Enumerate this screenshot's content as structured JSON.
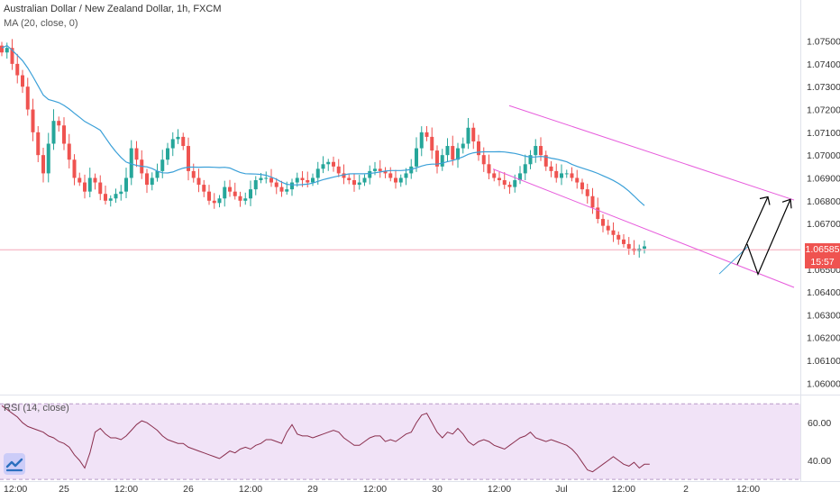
{
  "legend": {
    "symbol_title": "Australian Dollar / New Zealand Dollar, 1h, FXCM",
    "ma_label": "MA (20, close, 0)",
    "rsi_label": "RSI (14, close)"
  },
  "current_price": {
    "price": "1.06585",
    "countdown": "15:57",
    "value": 1.06585
  },
  "colors": {
    "up": "#26a69a",
    "down": "#ef5350",
    "ma": "#3ba0d8",
    "channel": "#e75bdc",
    "rsi_band": "#f1e3f7",
    "rsi_line": "#8a2f4e",
    "price_line": "#f3a6b8",
    "arrow": "#000000"
  },
  "chart_data": [
    {
      "type": "candlestick",
      "title": "Australian Dollar / New Zealand Dollar, 1h, FXCM",
      "y_axis_ticks": [
        "1.07500",
        "1.07400",
        "1.07300",
        "1.07200",
        "1.07100",
        "1.07000",
        "1.06900",
        "1.06800",
        "1.06700",
        "1.06600",
        "1.06500",
        "1.06400",
        "1.06300",
        "1.06200",
        "1.06100",
        "1.06000"
      ],
      "ylim": [
        1.0595,
        1.0768
      ],
      "x_axis_ticks": [
        "12:00",
        "25",
        "12:00",
        "26",
        "12:00",
        "29",
        "12:00",
        "30",
        "12:00",
        "Jul",
        "12:00",
        "2",
        "12:00"
      ],
      "x_tick_index": [
        0,
        12,
        24,
        36,
        48,
        60,
        72,
        84,
        96,
        108,
        120,
        132,
        144
      ],
      "grid": false,
      "series_close": [
        1.0745,
        1.0747,
        1.074,
        1.0735,
        1.073,
        1.072,
        1.071,
        1.07,
        1.0692,
        1.0705,
        1.0715,
        1.0713,
        1.0705,
        1.0698,
        1.069,
        1.0688,
        1.0684,
        1.069,
        1.0688,
        1.0683,
        1.068,
        1.0681,
        1.0683,
        1.0684,
        1.069,
        1.0703,
        1.0698,
        1.0692,
        1.0687,
        1.069,
        1.0693,
        1.0698,
        1.0703,
        1.0707,
        1.0708,
        1.0704,
        1.0693,
        1.069,
        1.0687,
        1.0684,
        1.068,
        1.0679,
        1.0681,
        1.0686,
        1.0684,
        1.0682,
        1.068,
        1.0681,
        1.0685,
        1.0689,
        1.069,
        1.069,
        1.0688,
        1.0686,
        1.0684,
        1.0685,
        1.0688,
        1.069,
        1.0689,
        1.0688,
        1.069,
        1.0694,
        1.0696,
        1.0697,
        1.0695,
        1.0692,
        1.069,
        1.0689,
        1.0687,
        1.0688,
        1.069,
        1.0693,
        1.0694,
        1.0693,
        1.0692,
        1.069,
        1.0688,
        1.069,
        1.0692,
        1.0695,
        1.0703,
        1.071,
        1.0708,
        1.0702,
        1.0695,
        1.07,
        1.0704,
        1.0698,
        1.0703,
        1.0705,
        1.0712,
        1.0706,
        1.07,
        1.0696,
        1.0692,
        1.069,
        1.0689,
        1.0687,
        1.0686,
        1.0689,
        1.0692,
        1.0696,
        1.07,
        1.0704,
        1.07,
        1.0695,
        1.0693,
        1.069,
        1.0692,
        1.0692,
        1.069,
        1.0688,
        1.0685,
        1.0682,
        1.0677,
        1.0672,
        1.0669,
        1.0667,
        1.0665,
        1.0663,
        1.0661,
        1.0659,
        1.0658,
        1.0659,
        1.066
      ],
      "ma_period": 20
    },
    {
      "type": "line",
      "title": "RSI (14, close)",
      "y_axis_ticks": [
        "60.00",
        "40.00"
      ],
      "ylim": [
        31,
        72
      ],
      "band": [
        30,
        70
      ],
      "values": [
        69,
        67,
        65,
        63,
        60,
        58,
        57,
        56,
        55,
        53,
        52,
        50,
        49,
        47,
        43,
        40,
        36,
        44,
        55,
        57,
        54,
        52,
        52,
        51,
        53,
        56,
        59,
        61,
        60,
        58,
        56,
        53,
        51,
        50,
        49,
        49,
        47,
        46,
        45,
        44,
        43,
        42,
        41,
        43,
        45,
        44,
        46,
        47,
        46,
        48,
        49,
        51,
        51,
        50,
        49,
        55,
        59,
        54,
        53,
        53,
        52,
        53,
        54,
        55,
        56,
        55,
        52,
        50,
        48,
        48,
        50,
        52,
        53,
        53,
        50,
        51,
        50,
        52,
        54,
        55,
        60,
        64,
        65,
        60,
        55,
        52,
        55,
        54,
        57,
        54,
        50,
        48,
        50,
        51,
        50,
        48,
        47,
        46,
        48,
        50,
        52,
        53,
        55,
        52,
        51,
        50,
        51,
        50,
        49,
        48,
        46,
        43,
        39,
        35,
        34,
        36,
        38,
        40,
        42,
        40,
        38,
        37,
        39,
        36,
        38,
        38
      ]
    }
  ]
}
